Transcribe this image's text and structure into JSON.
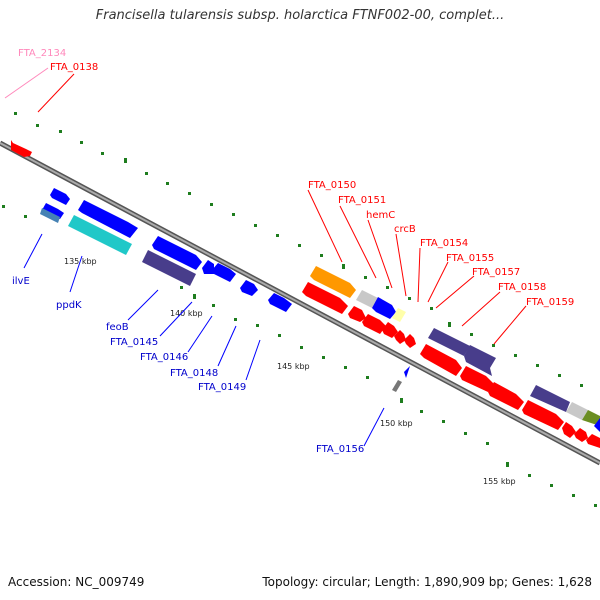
{
  "title": "Francisella tularensis subsp. holarctica FTNF002-00, complet...",
  "footer": {
    "accession": "Accession: NC_009749",
    "summary": "Topology: circular; Length: 1,890,909 bp; Genes: 1,628"
  },
  "ticks": [
    "135 kbp",
    "140 kbp",
    "145 kbp",
    "150 kbp",
    "155 kbp"
  ],
  "labels": {
    "FTA_2134": "FTA_2134",
    "FTA_0138": "FTA_0138",
    "ilvE": "ilvE",
    "ppdK": "ppdK",
    "feoB": "feoB",
    "FTA_0145": "FTA_0145",
    "FTA_0146": "FTA_0146",
    "FTA_0148": "FTA_0148",
    "FTA_0149": "FTA_0149",
    "FTA_0150": "FTA_0150",
    "FTA_0151": "FTA_0151",
    "hemC": "hemC",
    "crcB": "crcB",
    "FTA_0154": "FTA_0154",
    "FTA_0155": "FTA_0155",
    "FTA_0157": "FTA_0157",
    "FTA_0158": "FTA_0158",
    "FTA_0159": "FTA_0159",
    "FTA_0156": "FTA_0156"
  },
  "colors": {
    "red": "#ff0000",
    "blue": "#0000ff",
    "navy": "#483d8b",
    "cyan": "#20c8c8",
    "orange": "#ff9800",
    "gray": "#c8c8c8",
    "pink": "#ff88bb",
    "green": "#228b22"
  }
}
